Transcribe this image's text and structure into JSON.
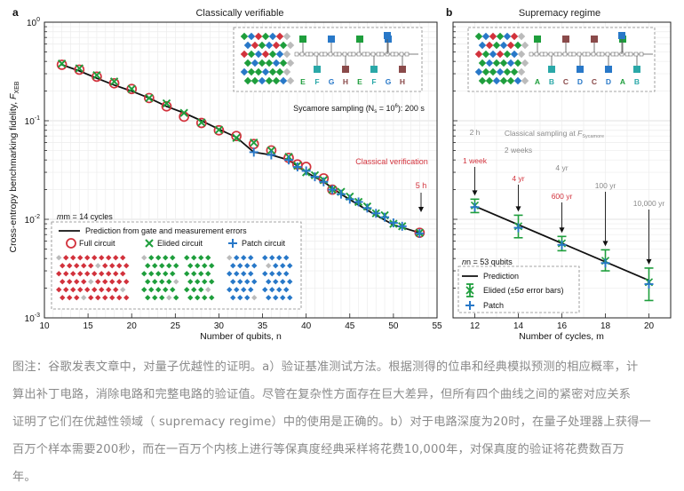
{
  "figure": {
    "panel_a": {
      "letter": "a",
      "title": "Classically verifiable",
      "inset_labels": [
        "E",
        "F",
        "G",
        "H",
        "E",
        "F",
        "G",
        "H"
      ],
      "annotations": {
        "sycamore": "Sycamore sampling (N",
        "sycamore_sub": "s",
        "sycamore_mid": " = 10",
        "sycamore_sup": "6",
        "sycamore_end": "): 200 s",
        "classical_verification": "Classical verification",
        "five_h": "5 h"
      },
      "legend": {
        "header": "m = 14 cycles",
        "prediction": "Prediction from gate and measurement errors",
        "full": "Full circuit",
        "elided": "Elided circuit",
        "patch": "Patch circuit"
      }
    },
    "panel_b": {
      "letter": "b",
      "title": "Supremacy regime",
      "inset_labels": [
        "A",
        "B",
        "C",
        "D",
        "C",
        "D",
        "A",
        "B"
      ],
      "annotations": {
        "classical_sampling": "Classical sampling at ",
        "f_sub": "Sycamore",
        "times_gray": [
          "2 h",
          "2 weeks",
          "4 yr",
          "100 yr",
          "10,000 yr"
        ],
        "times_red": [
          "1 week",
          "4 yr",
          "600 yr"
        ]
      },
      "legend": {
        "header": "n = 53 qubits",
        "prediction": "Prediction",
        "elided": "Elided (±5σ error bars)",
        "patch": "Patch"
      }
    },
    "y_axis_label": "Cross-entropy benchmarking fidelity, ",
    "y_axis_sub": "XEB",
    "colors": {
      "full": "#d2323c",
      "elided": "#1e9e3c",
      "patch": "#2878c8",
      "annotation_red": "#d2323c",
      "gray_text": "#8a8a8a"
    }
  },
  "chart_data": [
    {
      "type": "scatter",
      "panel": "a",
      "title": "Classically verifiable",
      "xlabel": "Number of qubits, n",
      "ylabel": "Cross-entropy benchmarking fidelity, F_XEB",
      "xlim": [
        10,
        55
      ],
      "ylim": [
        0.001,
        1.0
      ],
      "yscale": "log",
      "xticks": [
        10,
        15,
        20,
        25,
        30,
        35,
        40,
        45,
        50,
        55
      ],
      "yticks": [
        "10^-3",
        "10^-2",
        "10^-1",
        "10^0"
      ],
      "grid": true,
      "series": [
        {
          "name": "Prediction from gate and measurement errors",
          "kind": "line",
          "x": [
            12,
            14,
            16,
            18,
            20,
            22,
            24,
            26,
            28,
            30,
            32,
            34,
            36,
            38,
            40,
            42,
            44,
            46,
            48,
            50,
            53
          ],
          "y": [
            0.37,
            0.32,
            0.27,
            0.23,
            0.2,
            0.17,
            0.14,
            0.12,
            0.1,
            0.082,
            0.068,
            0.048,
            0.045,
            0.04,
            0.03,
            0.024,
            0.018,
            0.014,
            0.011,
            0.0088,
            0.0073
          ]
        },
        {
          "name": "Full circuit",
          "kind": "circle",
          "x": [
            12,
            14,
            16,
            18,
            20,
            22,
            24,
            26,
            28,
            30,
            32,
            34,
            36,
            38,
            39,
            40,
            42,
            43,
            53
          ],
          "y": [
            0.37,
            0.33,
            0.28,
            0.24,
            0.21,
            0.17,
            0.14,
            0.11,
            0.095,
            0.08,
            0.07,
            0.058,
            0.05,
            0.042,
            0.036,
            0.034,
            0.026,
            0.02,
            0.0073
          ]
        },
        {
          "name": "Elided circuit",
          "kind": "x",
          "x": [
            12,
            14,
            16,
            18,
            20,
            22,
            24,
            26,
            28,
            30,
            32,
            34,
            36,
            38,
            39,
            40,
            41,
            42,
            43,
            44,
            45,
            46,
            47,
            48,
            49,
            50,
            51,
            53
          ],
          "y": [
            0.38,
            0.34,
            0.29,
            0.25,
            0.21,
            0.17,
            0.15,
            0.12,
            0.096,
            0.081,
            0.067,
            0.06,
            0.05,
            0.043,
            0.035,
            0.03,
            0.028,
            0.025,
            0.02,
            0.019,
            0.017,
            0.015,
            0.0135,
            0.0115,
            0.011,
            0.009,
            0.0085,
            0.0073
          ]
        },
        {
          "name": "Patch circuit",
          "kind": "plus",
          "x": [
            34,
            36,
            38,
            39,
            40,
            41,
            42,
            43,
            44,
            45,
            46,
            47,
            48,
            49,
            50,
            51,
            53
          ],
          "y": [
            0.048,
            0.045,
            0.04,
            0.034,
            0.031,
            0.027,
            0.024,
            0.02,
            0.018,
            0.016,
            0.015,
            0.013,
            0.0115,
            0.0105,
            0.0092,
            0.0085,
            0.0072
          ]
        }
      ]
    },
    {
      "type": "scatter",
      "panel": "b",
      "title": "Supremacy regime",
      "xlabel": "Number of cycles, m",
      "xlim": [
        11,
        21
      ],
      "ylim": [
        0.001,
        1.0
      ],
      "yscale": "log",
      "xticks": [
        12,
        14,
        16,
        18,
        20
      ],
      "grid": true,
      "series": [
        {
          "name": "Prediction",
          "kind": "line",
          "x": [
            12,
            20
          ],
          "y": [
            0.0136,
            0.0024
          ]
        },
        {
          "name": "Elided (±5σ error bars)",
          "kind": "errorbar",
          "x": [
            12,
            14,
            16,
            18,
            20
          ],
          "y": [
            0.0138,
            0.0085,
            0.0057,
            0.0038,
            0.0023
          ],
          "err_low": [
            0.0117,
            0.0065,
            0.0048,
            0.003,
            0.0015
          ],
          "err_high": [
            0.016,
            0.011,
            0.0067,
            0.0049,
            0.0032
          ]
        },
        {
          "name": "Patch",
          "kind": "plus",
          "x": [
            12,
            14,
            16,
            18,
            20
          ],
          "y": [
            0.0133,
            0.0082,
            0.0055,
            0.0036,
            0.0022
          ]
        }
      ]
    }
  ],
  "caption": {
    "lines": [
      "图注：谷歌发表文章中，对量子优越性的证明。a）验证基准测试方法。根据测得的位串和经典模拟预测的相应概率，计",
      "算出补丁电路，消除电路和完整电路的验证值。尽管在复杂性方面存在巨大差异，但所有四个曲线之间的紧密对应关系",
      "证明了它们在优越性领域（ supremacy regime）中的使用是正确的。b）对于电路深度为20时，在量子处理器上获得一",
      "百万个样本需要200秒，而在一百万个内核上进行等保真度经典采样将花费10,000年，对保真度的验证将花费数百万",
      "年。"
    ]
  }
}
